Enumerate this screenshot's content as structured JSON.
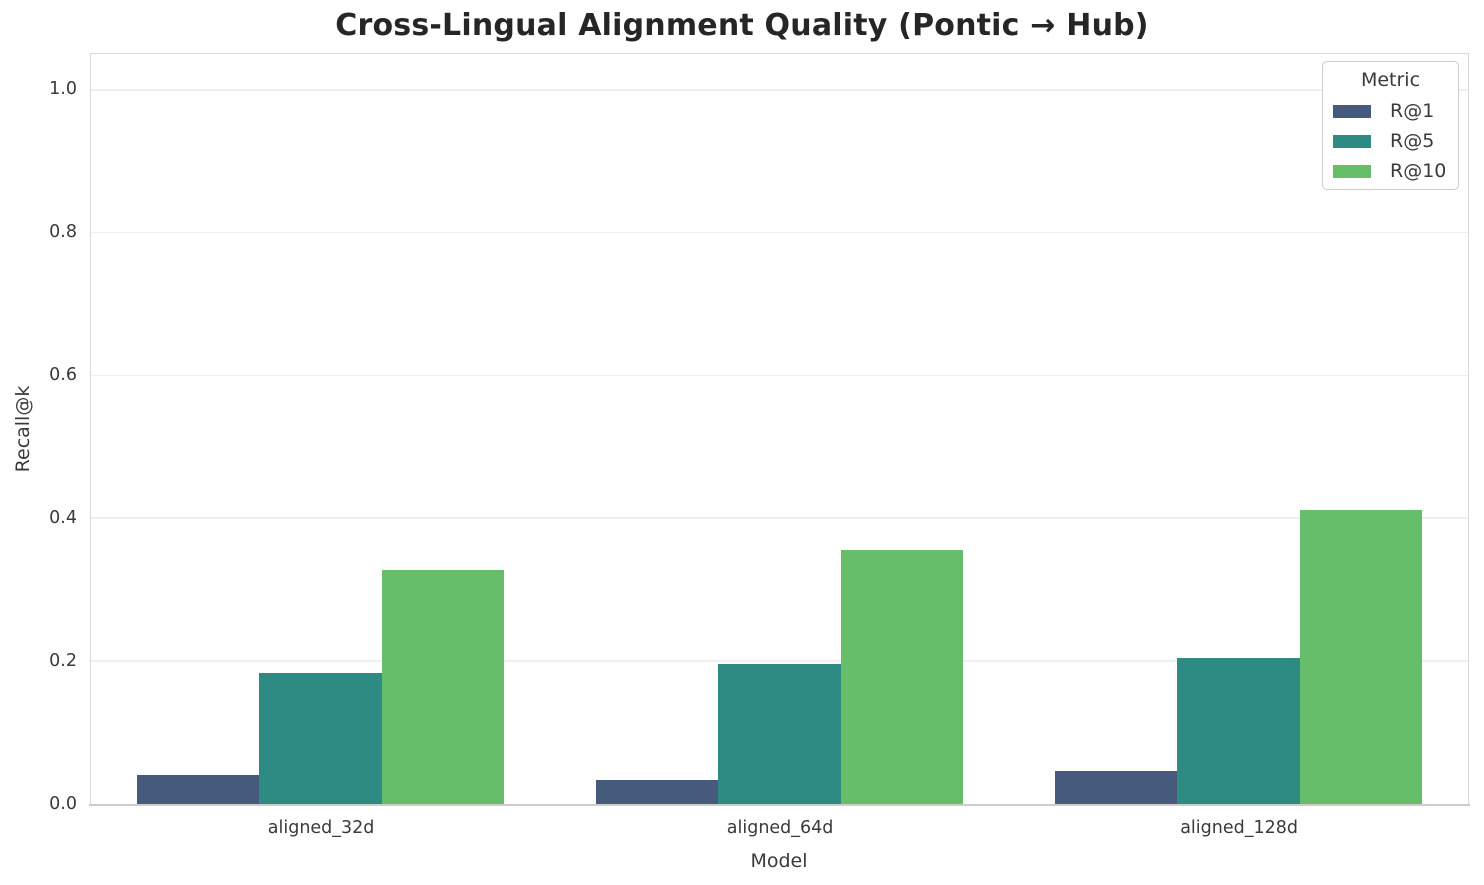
{
  "chart_data": {
    "type": "bar",
    "title": "Cross-Lingual Alignment Quality (Pontic → Hub)",
    "categories": [
      "aligned_32d",
      "aligned_64d",
      "aligned_128d"
    ],
    "series": [
      {
        "name": "R@1",
        "color": "#465a7e",
        "values": [
          0.041,
          0.034,
          0.046
        ]
      },
      {
        "name": "R@5",
        "color": "#2e8b83",
        "values": [
          0.184,
          0.196,
          0.204
        ]
      },
      {
        "name": "R@10",
        "color": "#66bd6a",
        "values": [
          0.327,
          0.355,
          0.412
        ]
      }
    ],
    "xlabel": "Model",
    "ylabel": "Recall@k",
    "ylim": [
      0,
      1.05
    ],
    "yticks": [
      "0.0",
      "0.2",
      "0.4",
      "0.6",
      "0.8",
      "1.0"
    ],
    "grid": "horizontal",
    "legend": {
      "title": "Metric",
      "position": "upper right"
    },
    "group_width_fraction": 0.8,
    "background_color": "#ffffff",
    "grid_color": "#efefef",
    "axis_border_color": "#d9d9d9",
    "text_color": "#3a3a3a",
    "title_color": "#262626"
  }
}
